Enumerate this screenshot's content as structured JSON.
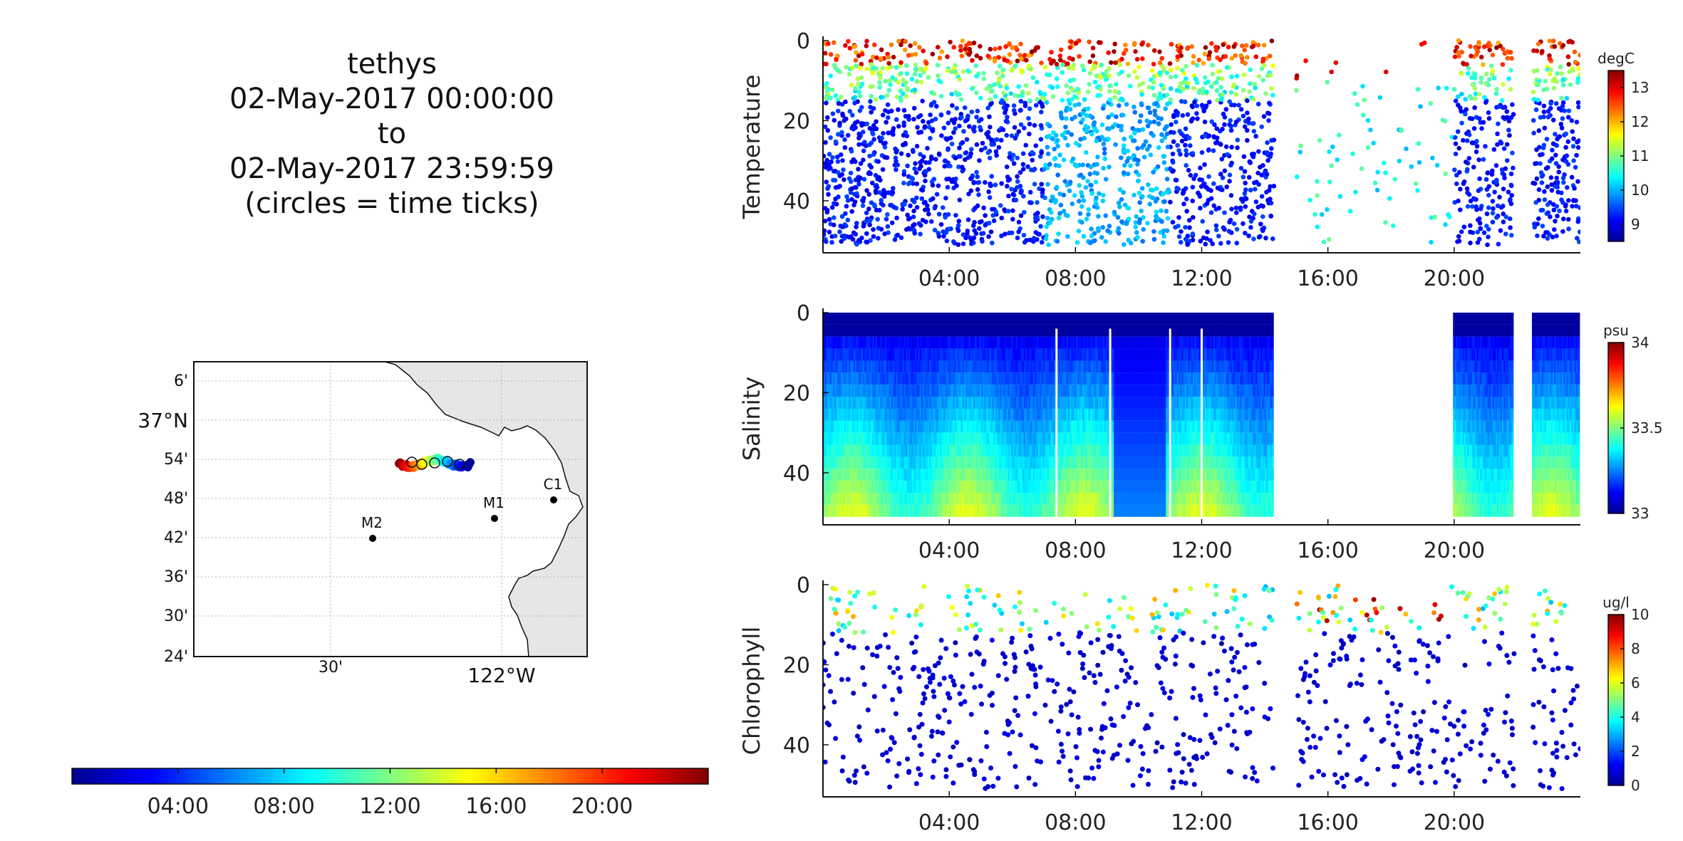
{
  "title": {
    "vehicle": "tethys",
    "start": "02-May-2017 00:00:00",
    "to": "to",
    "end": "02-May-2017 23:59:59",
    "note": "(circles = time ticks)"
  },
  "colors": {
    "jet": [
      "#00008f",
      "#0000ff",
      "#0080ff",
      "#00ffff",
      "#80ff80",
      "#ffff00",
      "#ff8000",
      "#ff0000",
      "#800000"
    ],
    "land": "#e6e6e6",
    "grid": "#b0b0b0"
  },
  "map": {
    "lat_labels": [
      "6'",
      "37°N",
      "54'",
      "48'",
      "42'",
      "36'",
      "30'",
      "24'"
    ],
    "lon_labels": [
      "30'",
      "122°W"
    ],
    "stations": [
      {
        "name": "M2"
      },
      {
        "name": "M1"
      },
      {
        "name": "C1"
      }
    ]
  },
  "time_colorbar": {
    "tick_labels": [
      "04:00",
      "08:00",
      "12:00",
      "16:00",
      "20:00"
    ]
  },
  "chart_data": [
    {
      "type": "scatter",
      "variable": "Temperature",
      "ylabel": "Temperature",
      "unit": "degC",
      "x_ticks": [
        "04:00",
        "08:00",
        "12:00",
        "16:00",
        "20:00"
      ],
      "y_ticks": [
        0,
        20,
        40
      ],
      "ylim": [
        53,
        0
      ],
      "xlim_hours": [
        0,
        24
      ],
      "clim": [
        8.5,
        13.5
      ],
      "cbar_ticks": [
        9,
        10,
        11,
        12,
        13
      ],
      "data_gaps_hours": [
        [
          14.3,
          15.0
        ],
        [
          21.9,
          22.5
        ]
      ]
    },
    {
      "type": "scatter",
      "variable": "Salinity",
      "ylabel": "Salinity",
      "unit": "psu",
      "x_ticks": [
        "04:00",
        "08:00",
        "12:00",
        "16:00",
        "20:00"
      ],
      "y_ticks": [
        0,
        20,
        40
      ],
      "ylim": [
        53,
        0
      ],
      "xlim_hours": [
        0,
        24
      ],
      "clim": [
        33,
        34
      ],
      "cbar_ticks": [
        33,
        33.5,
        34
      ],
      "data_gaps_hours": [
        [
          14.3,
          20.0
        ],
        [
          21.9,
          22.5
        ]
      ]
    },
    {
      "type": "scatter",
      "variable": "Chlorophyll",
      "ylabel": "Chlorophyll",
      "unit": "ug/l",
      "x_ticks": [
        "04:00",
        "08:00",
        "12:00",
        "16:00",
        "20:00"
      ],
      "y_ticks": [
        0,
        20,
        40
      ],
      "ylim": [
        53,
        0
      ],
      "xlim_hours": [
        0,
        24
      ],
      "clim": [
        0,
        10
      ],
      "cbar_ticks": [
        0,
        2,
        4,
        6,
        8,
        10
      ],
      "data_gaps_hours": [
        [
          14.3,
          15.0
        ],
        [
          21.9,
          22.5
        ]
      ]
    }
  ]
}
